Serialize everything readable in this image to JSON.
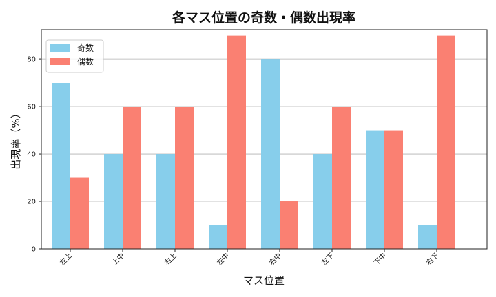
{
  "chart_data": {
    "type": "bar",
    "title": "各マス位置の奇数・偶数出現率",
    "xlabel": "マス位置",
    "ylabel": "出現率（%）",
    "categories": [
      "左上",
      "上中",
      "右上",
      "左中",
      "右中",
      "左下",
      "下中",
      "右下"
    ],
    "series": [
      {
        "name": "奇数",
        "color": "#87ceeb",
        "values": [
          70,
          40,
          40,
          10,
          80,
          40,
          50,
          10
        ]
      },
      {
        "name": "偶数",
        "color": "#fa8072",
        "values": [
          30,
          60,
          60,
          90,
          20,
          60,
          50,
          90
        ]
      }
    ],
    "ylim": [
      0,
      92.5
    ],
    "yticks": [
      0,
      20,
      40,
      60,
      80
    ],
    "grid": "horizontal",
    "legend_position": "top-left"
  }
}
